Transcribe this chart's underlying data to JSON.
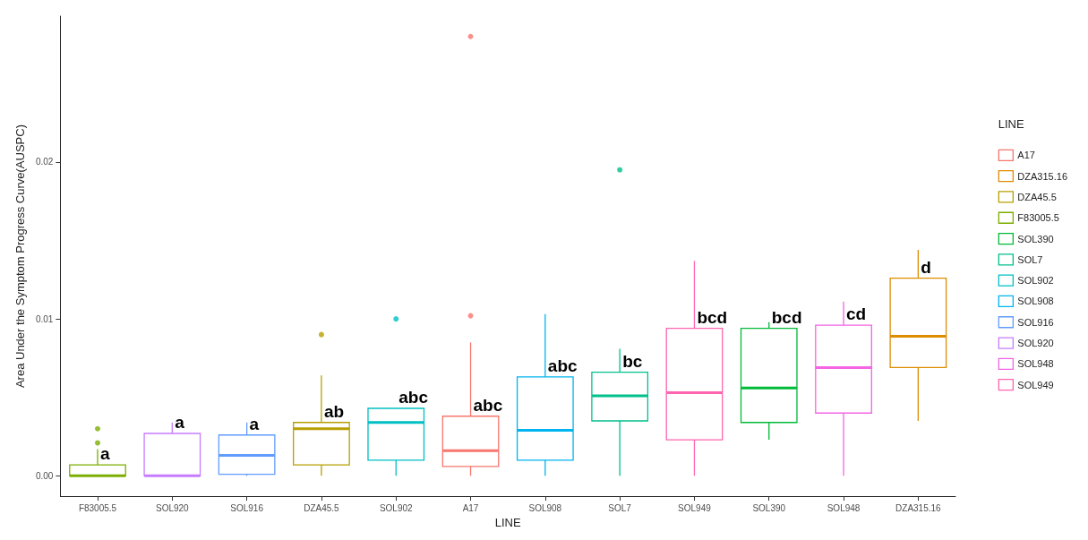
{
  "chart_data": {
    "type": "box",
    "xlabel": "LINE",
    "ylabel": "Area Under the Symptom Progress Curve(AUSPC)",
    "legend_title": "LINE",
    "legend": "right",
    "grid": false,
    "categories": [
      "F83005.5",
      "SOL920",
      "SOL916",
      "DZA45.5",
      "SOL902",
      "A17",
      "SOL908",
      "SOL7",
      "SOL949",
      "SOL390",
      "SOL948",
      "DZA315.16"
    ],
    "ylim": [
      -0.0013,
      0.0293
    ],
    "yticks": [
      {
        "value": 0,
        "label": "0.00"
      },
      {
        "value": 0.01,
        "label": "0.01"
      },
      {
        "value": 0.02,
        "label": "0.02"
      }
    ],
    "series": [
      {
        "name": "A17",
        "color": "#f8766d",
        "x": [
          "A17"
        ],
        "boxes": [
          {
            "low": 0,
            "q1": 0.0006,
            "median": 0.0016,
            "q3": 0.0038,
            "high": 0.0085,
            "outliers": [
              0.0102,
              0.028
            ]
          }
        ]
      },
      {
        "name": "DZA315.16",
        "color": "#de8c00",
        "x": [
          "DZA315.16"
        ],
        "boxes": [
          {
            "low": 0.0035,
            "q1": 0.0069,
            "median": 0.0089,
            "q3": 0.0126,
            "high": 0.0144
          }
        ]
      },
      {
        "name": "DZA45.5",
        "color": "#b79f00",
        "x": [
          "DZA45.5"
        ],
        "boxes": [
          {
            "low": 0,
            "q1": 0.0007,
            "median": 0.003,
            "q3": 0.0034,
            "high": 0.0064,
            "outliers": [
              0.009
            ]
          }
        ]
      },
      {
        "name": "F83005.5",
        "color": "#7cae00",
        "x": [
          "F83005.5"
        ],
        "boxes": [
          {
            "low": 0,
            "q1": 0,
            "median": 0,
            "q3": 0.0007,
            "high": 0.0017,
            "outliers": [
              0.0021,
              0.003
            ]
          }
        ]
      },
      {
        "name": "SOL390",
        "color": "#00ba38",
        "x": [
          "SOL390"
        ],
        "boxes": [
          {
            "low": 0.0023,
            "q1": 0.0034,
            "median": 0.0056,
            "q3": 0.0094,
            "high": 0.0098
          }
        ]
      },
      {
        "name": "SOL7",
        "color": "#00c08b",
        "x": [
          "SOL7"
        ],
        "boxes": [
          {
            "low": 0,
            "q1": 0.0035,
            "median": 0.0051,
            "q3": 0.0066,
            "high": 0.0081,
            "outliers": [
              0.0195
            ]
          }
        ]
      },
      {
        "name": "SOL902",
        "color": "#00bfc4",
        "x": [
          "SOL902"
        ],
        "boxes": [
          {
            "low": 0,
            "q1": 0.001,
            "median": 0.0034,
            "q3": 0.0043,
            "high": 0.0043,
            "outliers": [
              0.01
            ]
          }
        ]
      },
      {
        "name": "SOL908",
        "color": "#00b4f0",
        "x": [
          "SOL908"
        ],
        "boxes": [
          {
            "low": 0,
            "q1": 0.001,
            "median": 0.0029,
            "q3": 0.0063,
            "high": 0.0103
          }
        ]
      },
      {
        "name": "SOL916",
        "color": "#619cff",
        "x": [
          "SOL916"
        ],
        "boxes": [
          {
            "low": 0,
            "q1": 0.0001,
            "median": 0.0013,
            "q3": 0.0026,
            "high": 0.0034
          }
        ]
      },
      {
        "name": "SOL920",
        "color": "#c77cff",
        "x": [
          "SOL920"
        ],
        "boxes": [
          {
            "low": 0,
            "q1": 0,
            "median": 0,
            "q3": 0.0027,
            "high": 0.0034
          }
        ]
      },
      {
        "name": "SOL948",
        "color": "#f564e3",
        "x": [
          "SOL948"
        ],
        "boxes": [
          {
            "low": 0,
            "q1": 0.004,
            "median": 0.0069,
            "q3": 0.0096,
            "high": 0.0111
          }
        ]
      },
      {
        "name": "SOL949",
        "color": "#ff64b0",
        "x": [
          "SOL949"
        ],
        "boxes": [
          {
            "low": 0,
            "q1": 0.0023,
            "median": 0.0053,
            "q3": 0.0094,
            "high": 0.0137
          }
        ]
      }
    ],
    "annotations": [
      {
        "text": "a",
        "x": "F83005.5",
        "y": 0.0007
      },
      {
        "text": "a",
        "x": "SOL920",
        "y": 0.0027
      },
      {
        "text": "a",
        "x": "SOL916",
        "y": 0.0026
      },
      {
        "text": "ab",
        "x": "DZA45.5",
        "y": 0.0034
      },
      {
        "text": "abc",
        "x": "SOL902",
        "y": 0.0043
      },
      {
        "text": "abc",
        "x": "A17",
        "y": 0.0038
      },
      {
        "text": "abc",
        "x": "SOL908",
        "y": 0.0063
      },
      {
        "text": "bc",
        "x": "SOL7",
        "y": 0.0066
      },
      {
        "text": "bcd",
        "x": "SOL949",
        "y": 0.0094
      },
      {
        "text": "bcd",
        "x": "SOL390",
        "y": 0.0094
      },
      {
        "text": "cd",
        "x": "SOL948",
        "y": 0.0096
      },
      {
        "text": "d",
        "x": "DZA315.16",
        "y": 0.0126
      }
    ]
  }
}
